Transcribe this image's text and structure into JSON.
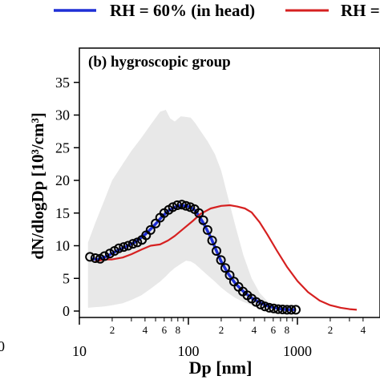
{
  "chart_data": {
    "type": "line",
    "panel_label": "(b) hygroscopic group",
    "xlabel": "Dp [nm]",
    "ylabel": "dN/dlogDp [10³/cm³]",
    "x_scale": "log",
    "xlim": [
      10,
      4000
    ],
    "ylim": [
      -1,
      35
    ],
    "y_ticks": [
      0,
      5,
      10,
      15,
      20,
      25,
      30,
      35
    ],
    "x_major_ticks": [
      10,
      100,
      1000
    ],
    "x_major_labels": [
      "10",
      "100",
      "1000"
    ],
    "x_minor_labeled": [
      20,
      40,
      60,
      80,
      200,
      400,
      600,
      800,
      2000,
      4000
    ],
    "x_minor_labels": [
      "2",
      "4",
      "6",
      "8",
      "2",
      "4",
      "6",
      "8",
      "2",
      "4"
    ],
    "edge_labels": {
      "left_clipped_tick": "0"
    },
    "legend": [
      {
        "label": "RH = 60% (in head)",
        "color": "#1f2fd6"
      },
      {
        "label": "RH = ",
        "color": "#d62020"
      }
    ],
    "series": [
      {
        "name": "RH = 60% (in head)",
        "style": "line",
        "color": "#1f2fd6",
        "x": [
          13,
          15,
          18,
          22,
          27,
          33,
          40,
          48,
          57,
          65,
          75,
          85,
          95,
          105,
          115,
          125,
          140,
          160,
          180,
          200,
          230,
          270,
          320,
          380,
          450,
          530,
          620,
          720,
          830,
          950
        ],
        "y": [
          8.0,
          7.9,
          8.4,
          9.2,
          9.9,
          10.6,
          11.7,
          13.0,
          14.4,
          15.3,
          15.9,
          16.2,
          16.1,
          15.9,
          15.4,
          14.6,
          13.2,
          11.3,
          9.3,
          7.6,
          5.8,
          4.2,
          3.0,
          2.0,
          1.3,
          0.8,
          0.5,
          0.3,
          0.2,
          0.2
        ]
      },
      {
        "name": "",
        "style": "line",
        "color": "#d62020",
        "x": [
          14,
          17,
          20,
          25,
          30,
          37,
          45,
          55,
          65,
          75,
          90,
          110,
          130,
          160,
          200,
          240,
          280,
          330,
          380,
          450,
          530,
          650,
          800,
          1000,
          1250,
          1600,
          2000,
          2500,
          3000,
          3500
        ],
        "y": [
          7.6,
          7.9,
          7.9,
          8.2,
          8.7,
          9.4,
          10.0,
          10.2,
          10.8,
          11.5,
          12.6,
          13.8,
          14.9,
          15.7,
          16.1,
          16.2,
          16.0,
          15.7,
          15.1,
          13.6,
          11.7,
          9.2,
          6.8,
          4.6,
          2.9,
          1.6,
          0.9,
          0.5,
          0.3,
          0.2
        ]
      },
      {
        "name": "",
        "style": "markers",
        "marker": "open-circle",
        "color": "#000000",
        "x": [
          12.5,
          14,
          15.5,
          17,
          19,
          21,
          23,
          25.5,
          28,
          31,
          34,
          37.5,
          41,
          45,
          50,
          55,
          60,
          66,
          72,
          79,
          87,
          95,
          104,
          114,
          125,
          137,
          150,
          165,
          181,
          199,
          218,
          239,
          262,
          288,
          316,
          347,
          381,
          418,
          459,
          504,
          553,
          607,
          666,
          731,
          802,
          880,
          966
        ],
        "y": [
          8.3,
          8.1,
          8.0,
          8.4,
          8.8,
          9.2,
          9.6,
          9.8,
          10.0,
          10.3,
          10.5,
          10.9,
          11.6,
          12.4,
          13.4,
          14.3,
          15.0,
          15.5,
          15.9,
          16.2,
          16.3,
          16.1,
          15.9,
          15.6,
          15.0,
          13.9,
          12.4,
          10.8,
          9.2,
          7.8,
          6.6,
          5.5,
          4.5,
          3.7,
          3.0,
          2.4,
          1.9,
          1.4,
          1.0,
          0.7,
          0.5,
          0.4,
          0.3,
          0.25,
          0.2,
          0.2,
          0.2
        ]
      },
      {
        "name": "",
        "style": "band",
        "color": "#e8e8e8",
        "x": [
          12,
          14,
          17,
          20,
          25,
          30,
          37,
          45,
          55,
          62,
          68,
          75,
          85,
          95,
          105,
          115,
          130,
          150,
          175,
          200,
          230,
          270,
          320,
          380,
          450,
          530,
          620,
          720
        ],
        "upper": [
          10.5,
          13.5,
          17.0,
          20.0,
          22.5,
          24.5,
          26.5,
          28.5,
          30.5,
          30.8,
          29.5,
          29.0,
          29.8,
          29.7,
          29.6,
          28.8,
          27.5,
          26.0,
          24.0,
          21.5,
          17.5,
          13.0,
          8.5,
          5.0,
          2.8,
          1.5,
          0.8,
          0.5
        ],
        "lower": [
          0.5,
          0.6,
          0.7,
          0.9,
          1.2,
          1.7,
          2.4,
          3.4,
          4.5,
          5.3,
          6.0,
          6.6,
          7.2,
          7.7,
          7.6,
          7.2,
          6.4,
          5.5,
          4.5,
          3.6,
          2.8,
          2.0,
          1.4,
          0.9,
          0.6,
          0.4,
          0.3,
          0.3
        ]
      }
    ]
  }
}
